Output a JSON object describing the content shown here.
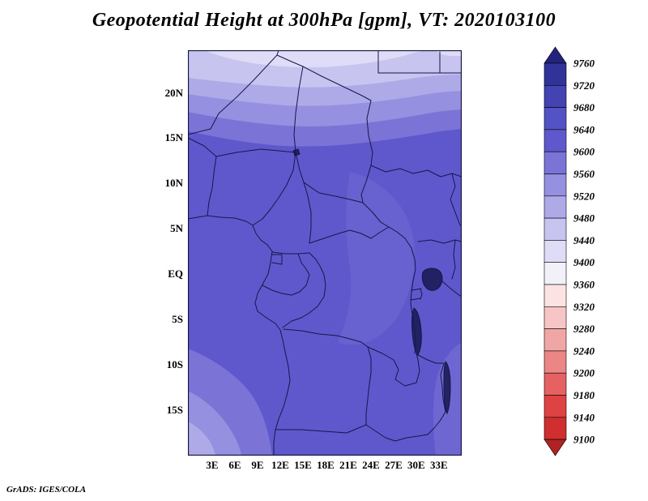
{
  "chart_data": {
    "type": "heatmap",
    "chart_kind": "filled-contour-map",
    "title": "Geopotential Height at 300hPa [gpm], VT: 2020103100",
    "variable": "Geopotential Height",
    "level": "300hPa",
    "units": "gpm",
    "valid_time": "2020103100",
    "credit": "GrADS: IGES/COLA",
    "x_ticks": [
      {
        "label": "3E",
        "lon": 3
      },
      {
        "label": "6E",
        "lon": 6
      },
      {
        "label": "9E",
        "lon": 9
      },
      {
        "label": "12E",
        "lon": 12
      },
      {
        "label": "15E",
        "lon": 15
      },
      {
        "label": "18E",
        "lon": 18
      },
      {
        "label": "21E",
        "lon": 21
      },
      {
        "label": "24E",
        "lon": 24
      },
      {
        "label": "27E",
        "lon": 27
      },
      {
        "label": "30E",
        "lon": 30
      },
      {
        "label": "33E",
        "lon": 33
      }
    ],
    "y_ticks": [
      {
        "label": "20N",
        "lat": 20
      },
      {
        "label": "15N",
        "lat": 15
      },
      {
        "label": "10N",
        "lat": 10
      },
      {
        "label": "5N",
        "lat": 5
      },
      {
        "label": "EQ",
        "lat": 0
      },
      {
        "label": "5S",
        "lat": -5
      },
      {
        "label": "10S",
        "lat": -10
      },
      {
        "label": "15S",
        "lat": -15
      }
    ],
    "lon_range_deg_east": [
      0,
      36
    ],
    "lat_range_deg": [
      -20,
      24.7
    ],
    "grid": "off",
    "legend_position": "right",
    "colorbar": {
      "orientation": "vertical",
      "labels": [
        "9760",
        "9720",
        "9680",
        "9640",
        "9600",
        "9560",
        "9520",
        "9480",
        "9440",
        "9400",
        "9360",
        "9320",
        "9280",
        "9240",
        "9200",
        "9180",
        "9140",
        "9100"
      ],
      "colors": [
        "#23237d",
        "#32329b",
        "#4343b3",
        "#5353c6",
        "#5f58cc",
        "#7b74d6",
        "#9690e0",
        "#aeaae8",
        "#c7c4f0",
        "#dedcf6",
        "#f2f1fa",
        "#fbe3e3",
        "#f6c6c6",
        "#f1a6a6",
        "#ec8585",
        "#e66262",
        "#de4343",
        "#cf2f2f",
        "#b22222"
      ]
    },
    "field_grid_estimated": {
      "lons_deg_east": [
        0,
        6,
        12,
        18,
        24,
        30,
        36
      ],
      "lats_deg": [
        24,
        20,
        15,
        10,
        5,
        0,
        -5,
        -10,
        -15,
        -20
      ],
      "values_gpm": [
        [
          9500,
          9480,
          9460,
          9450,
          9460,
          9470,
          9480
        ],
        [
          9560,
          9545,
          9530,
          9525,
          9535,
          9550,
          9560
        ],
        [
          9600,
          9595,
          9585,
          9585,
          9590,
          9600,
          9600
        ],
        [
          9620,
          9620,
          9615,
          9610,
          9615,
          9620,
          9620
        ],
        [
          9630,
          9630,
          9625,
          9620,
          9615,
          9615,
          9620
        ],
        [
          9630,
          9630,
          9625,
          9615,
          9605,
          9600,
          9610
        ],
        [
          9625,
          9620,
          9615,
          9595,
          9585,
          9590,
          9600
        ],
        [
          9615,
          9610,
          9605,
          9590,
          9580,
          9580,
          9585
        ],
        [
          9590,
          9595,
          9600,
          9595,
          9585,
          9580,
          9580
        ],
        [
          9550,
          9560,
          9575,
          9580,
          9575,
          9570,
          9570
        ]
      ]
    }
  }
}
